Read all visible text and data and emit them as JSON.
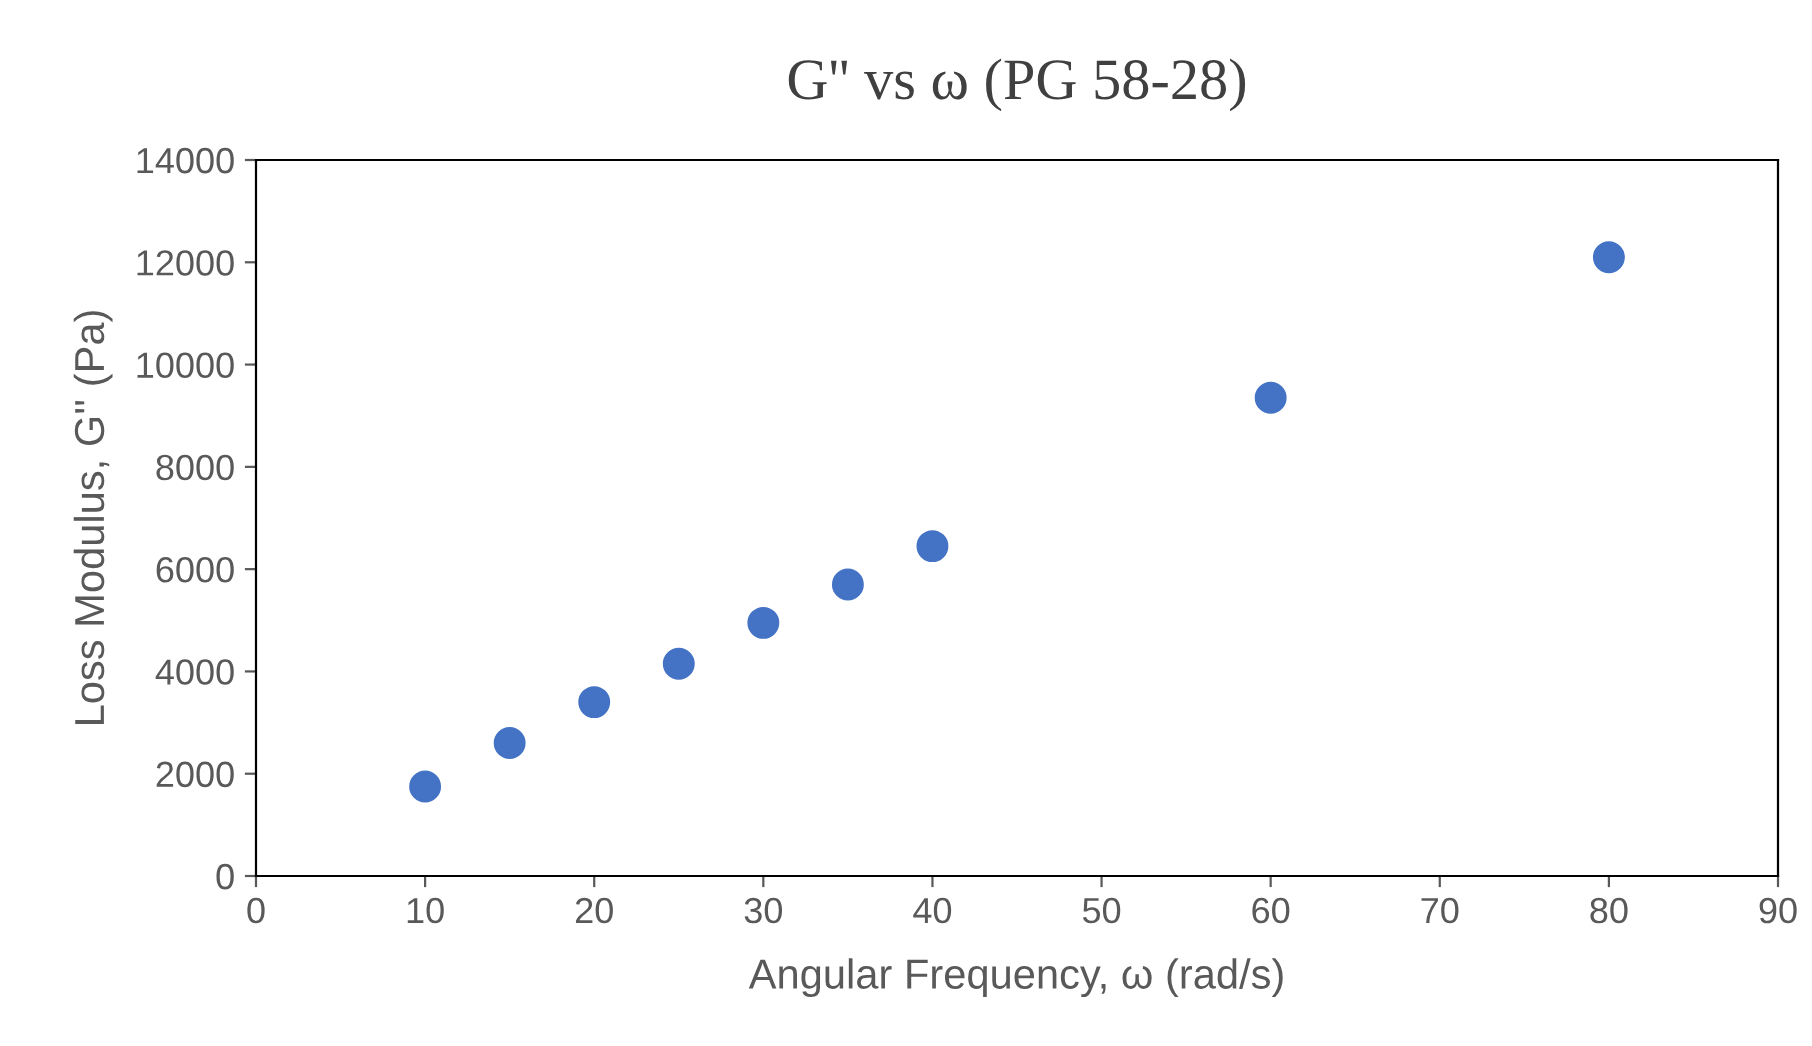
{
  "chart_data": {
    "type": "scatter",
    "title": "G'' vs ω (PG 58-28)",
    "xlabel": "Angular Frequency, ω (rad/s)",
    "ylabel": "Loss Modulus, G'' (Pa)",
    "x": [
      10,
      15,
      20,
      25,
      30,
      35,
      40,
      60,
      80
    ],
    "series": [
      {
        "color": "#4472c4",
        "values": [
          1750,
          2600,
          3400,
          4150,
          4950,
          5700,
          6450,
          9350,
          12100
        ]
      }
    ],
    "xlim": [
      0,
      90
    ],
    "xticks": [
      0,
      10,
      20,
      30,
      40,
      50,
      60,
      70,
      80,
      90
    ],
    "ylim": [
      0,
      14000
    ],
    "yticks": [
      0,
      2000,
      4000,
      6000,
      8000,
      10000,
      12000,
      14000
    ],
    "grid": false,
    "legend": false,
    "marker": "circle"
  }
}
